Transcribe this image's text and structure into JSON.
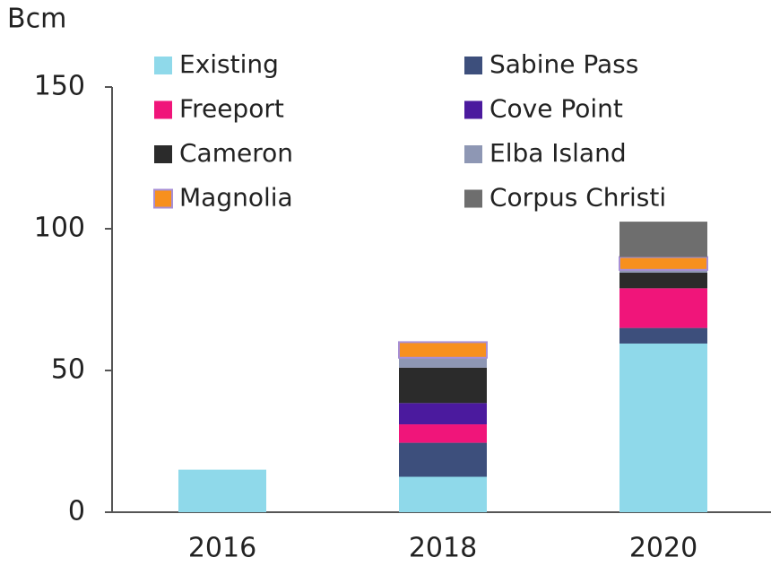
{
  "chart_data": {
    "type": "stacked_bar",
    "y_label": "Bcm",
    "categories": [
      "2016",
      "2018",
      "2020"
    ],
    "series": [
      {
        "name": "Existing",
        "color": "#8fd9ea",
        "values": [
          15,
          12.5,
          59.5
        ]
      },
      {
        "name": "Sabine Pass",
        "color": "#3d4f7c",
        "values": [
          0,
          12,
          5.5
        ]
      },
      {
        "name": "Freeport",
        "color": "#f0157a",
        "values": [
          0,
          6.5,
          14
        ]
      },
      {
        "name": "Cove Point",
        "color": "#4b1a9e",
        "values": [
          0,
          7.5,
          0
        ]
      },
      {
        "name": "Cameron",
        "color": "#2b2b2b",
        "values": [
          0,
          12.5,
          5.5
        ]
      },
      {
        "name": "Elba Island",
        "color": "#8e97b4",
        "values": [
          0,
          3.5,
          1
        ]
      },
      {
        "name": "Magnolia",
        "color": "#f7901e",
        "values": [
          0,
          5.5,
          4.5
        ]
      },
      {
        "name": "Corpus Christi",
        "color": "#6e6e6e",
        "values": [
          0,
          0,
          12.5
        ]
      }
    ],
    "ylim": [
      0,
      150
    ],
    "yticks": [
      0,
      50,
      100,
      150
    ],
    "grid": false,
    "legend": "top"
  }
}
